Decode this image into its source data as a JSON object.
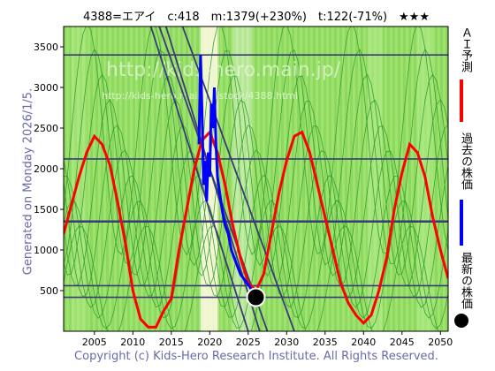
{
  "title": "4388=エアイ　c:418　m:1379(+230%)　t:122(-71%)　★★★",
  "generated": "Generated on Monday 2026/1/5.",
  "copyright": "Copyright (c) Kids-Hero Research Institute. All Rights Reserved.",
  "watermark_large": "http://kids-hero.main.jp/",
  "watermark_small": "http://kids-hero.main.jp/stock/4388.html",
  "legend": [
    {
      "label": "ＡＩ予測",
      "color": "#ff0000"
    },
    {
      "label": "過去の株価",
      "color": "#0000ff"
    },
    {
      "label": "最新の株価",
      "color": "#000000"
    }
  ],
  "chart_data": {
    "type": "line",
    "x_range": [
      2001,
      2051
    ],
    "y_range": [
      0,
      3750
    ],
    "x_ticks": [
      2005,
      2010,
      2015,
      2020,
      2025,
      2030,
      2035,
      2040,
      2045,
      2050
    ],
    "y_ticks": [
      500,
      1000,
      1500,
      2000,
      2500,
      3000,
      3500
    ],
    "horizontal_lines": [
      3400,
      2120,
      1350,
      560,
      418
    ],
    "series": [
      {
        "name": "ＡＩ予測",
        "color": "#ff0000",
        "x": [
          2001,
          2002,
          2003,
          2004,
          2005,
          2006,
          2007,
          2008,
          2009,
          2010,
          2011,
          2012,
          2013,
          2014,
          2015,
          2016,
          2017,
          2018,
          2019,
          2020,
          2021,
          2022,
          2023,
          2024,
          2025,
          2026,
          2027,
          2028,
          2029,
          2030,
          2031,
          2032,
          2033,
          2034,
          2035,
          2036,
          2037,
          2038,
          2039,
          2040,
          2041,
          2042,
          2043,
          2044,
          2045,
          2046,
          2047,
          2048,
          2049,
          2050,
          2051
        ],
        "values": [
          1200,
          1550,
          1900,
          2200,
          2400,
          2300,
          2050,
          1600,
          1100,
          500,
          150,
          50,
          50,
          250,
          400,
          1000,
          1500,
          2000,
          2350,
          2450,
          2200,
          1800,
          1300,
          900,
          600,
          500,
          700,
          1200,
          1700,
          2100,
          2400,
          2450,
          2200,
          1800,
          1400,
          1000,
          600,
          350,
          200,
          100,
          200,
          500,
          900,
          1500,
          1950,
          2300,
          2200,
          1900,
          1400,
          1000,
          650
        ]
      },
      {
        "name": "過去の株価",
        "color": "#0000ff",
        "x": [
          2018.6,
          2018.8,
          2019.0,
          2019.2,
          2019.4,
          2019.6,
          2019.8,
          2020.0,
          2020.2,
          2020.4,
          2020.6,
          2020.8,
          2021.0,
          2021.3,
          2021.6,
          2022.0,
          2022.4,
          2022.8,
          2023.2,
          2023.6,
          2024.0,
          2024.4,
          2024.8,
          2025.2,
          2025.6,
          2026.0
        ],
        "values": [
          2300,
          3400,
          2700,
          1800,
          2100,
          1600,
          2200,
          1900,
          2800,
          2500,
          3000,
          2300,
          1900,
          1700,
          1500,
          1300,
          1200,
          1000,
          900,
          800,
          700,
          650,
          600,
          550,
          480,
          418
        ]
      }
    ],
    "latest_point": {
      "x": 2026.0,
      "value": 418
    }
  }
}
